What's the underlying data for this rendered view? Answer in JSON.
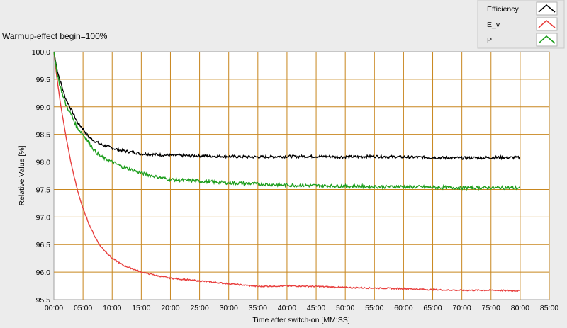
{
  "chart_data": {
    "type": "line",
    "title": "Warmup-effect begin=100%",
    "xlabel": "Time after switch-on [MM:SS]",
    "ylabel": "Relative Value [%]",
    "xlim": [
      0,
      85
    ],
    "ylim": [
      95.5,
      100.0
    ],
    "grid": true,
    "legend_placement": "top-right",
    "x_ticks": [
      "00:00",
      "05:00",
      "10:00",
      "15:00",
      "20:00",
      "25:00",
      "30:00",
      "35:00",
      "40:00",
      "45:00",
      "50:00",
      "55:00",
      "60:00",
      "65:00",
      "70:00",
      "75:00",
      "80:00",
      "85:00"
    ],
    "y_ticks": [
      "95.5",
      "96.0",
      "96.5",
      "97.0",
      "97.5",
      "98.0",
      "98.5",
      "99.0",
      "99.5",
      "100.0"
    ],
    "colors": {
      "plot_background": "#ffffff",
      "grid": "#c8861e",
      "chrome": "#ececec"
    },
    "series": [
      {
        "name": "Efficiency",
        "color": "#000000",
        "x": [
          0,
          0.5,
          1,
          2,
          3,
          4,
          5,
          6,
          7,
          8,
          10,
          12,
          15,
          18,
          20,
          25,
          30,
          35,
          40,
          45,
          50,
          55,
          60,
          65,
          70,
          75,
          80
        ],
        "values": [
          100.0,
          99.7,
          99.5,
          99.15,
          98.95,
          98.72,
          98.6,
          98.45,
          98.38,
          98.32,
          98.25,
          98.2,
          98.15,
          98.13,
          98.12,
          98.11,
          98.1,
          98.09,
          98.1,
          98.1,
          98.09,
          98.1,
          98.09,
          98.08,
          98.07,
          98.08,
          98.08
        ]
      },
      {
        "name": "E_v",
        "color": "#e8403f",
        "x": [
          0,
          0.5,
          1,
          2,
          3,
          4,
          5,
          6,
          7,
          8,
          10,
          12,
          15,
          18,
          20,
          25,
          30,
          35,
          40,
          45,
          50,
          55,
          60,
          65,
          70,
          75,
          80
        ],
        "values": [
          100.0,
          99.55,
          99.15,
          98.5,
          97.95,
          97.5,
          97.15,
          96.88,
          96.65,
          96.47,
          96.25,
          96.12,
          96.0,
          95.93,
          95.89,
          95.84,
          95.79,
          95.74,
          95.75,
          95.74,
          95.72,
          95.71,
          95.7,
          95.68,
          95.67,
          95.67,
          95.66
        ]
      },
      {
        "name": "P",
        "color": "#1e9e1e",
        "x": [
          0,
          0.5,
          1,
          2,
          3,
          4,
          5,
          6,
          7,
          8,
          10,
          12,
          15,
          18,
          20,
          25,
          30,
          35,
          40,
          45,
          50,
          55,
          60,
          65,
          70,
          75,
          80
        ],
        "values": [
          100.0,
          99.65,
          99.4,
          99.05,
          98.85,
          98.62,
          98.5,
          98.35,
          98.2,
          98.1,
          98.0,
          97.9,
          97.8,
          97.72,
          97.68,
          97.65,
          97.62,
          97.6,
          97.58,
          97.57,
          97.56,
          97.55,
          97.55,
          97.54,
          97.53,
          97.53,
          97.53
        ]
      }
    ]
  }
}
